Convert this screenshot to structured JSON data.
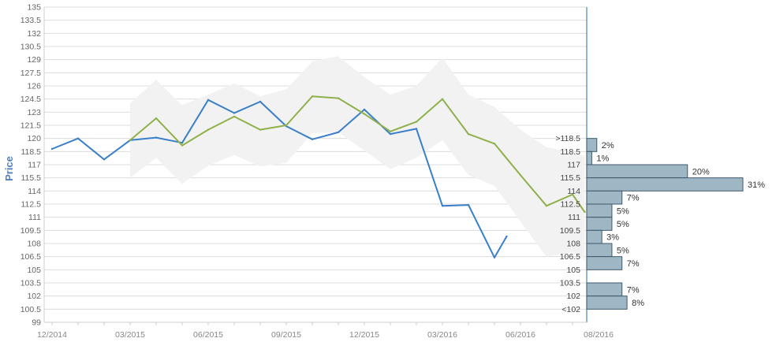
{
  "chart_data": {
    "type": "line",
    "ylabel": "Price",
    "ylim": [
      99,
      135
    ],
    "yticks": [
      135,
      133.5,
      132,
      130.5,
      129,
      127.5,
      126,
      124.5,
      123,
      121.5,
      120,
      118.5,
      117,
      115.5,
      114,
      112.5,
      111,
      109.5,
      108,
      106.5,
      105,
      103.5,
      102,
      100.5,
      99
    ],
    "xticks": [
      "12/2014",
      "03/2015",
      "06/2015",
      "09/2015",
      "12/2015",
      "03/2016",
      "06/2016",
      "08/2016"
    ],
    "grid": true,
    "colors": {
      "price": "#3a7fc8",
      "forecast": "#8fb04b",
      "band": "#f2f2f2",
      "bar_fill": "#9fb6c4",
      "bar_stroke": "#3d5a6c",
      "axis": "#4f81bd"
    },
    "series": [
      {
        "key": "price",
        "x": [
          "2014-12",
          "2015-01",
          "2015-02",
          "2015-03",
          "2015-04",
          "2015-05",
          "2015-06",
          "2015-07",
          "2015-08",
          "2015-09",
          "2015-10",
          "2015-11",
          "2015-12",
          "2016-01",
          "2016-02",
          "2016-03",
          "2016-04",
          "2016-05",
          "2016-05-15"
        ],
        "y": [
          118.8,
          120.0,
          117.6,
          119.8,
          120.1,
          119.5,
          124.4,
          122.9,
          124.2,
          121.4,
          119.9,
          120.7,
          123.3,
          120.5,
          121.1,
          112.3,
          112.4,
          106.4,
          108.8
        ]
      },
      {
        "key": "forecast",
        "x": [
          "2015-03",
          "2015-04",
          "2015-05",
          "2015-06",
          "2015-07",
          "2015-08",
          "2015-09",
          "2015-10",
          "2015-11",
          "2015-12",
          "2016-01",
          "2016-02",
          "2016-03",
          "2016-04",
          "2016-05",
          "2016-06",
          "2016-07",
          "2016-08",
          "2016-08-15"
        ],
        "y": [
          119.8,
          122.3,
          119.2,
          121.0,
          122.5,
          121.0,
          121.5,
          124.8,
          124.6,
          122.8,
          120.8,
          121.9,
          124.5,
          120.5,
          119.4,
          115.8,
          112.3,
          113.6,
          111.6
        ]
      }
    ],
    "band": {
      "x": [
        "2015-03",
        "2015-04",
        "2015-05",
        "2015-06",
        "2015-07",
        "2015-08",
        "2015-09",
        "2015-10",
        "2015-11",
        "2015-12",
        "2016-01",
        "2016-02",
        "2016-03",
        "2016-04",
        "2016-05",
        "2016-06",
        "2016-07",
        "2016-08",
        "2016-08-15"
      ],
      "upper": [
        124.0,
        126.7,
        123.8,
        125.0,
        126.3,
        124.8,
        125.6,
        128.8,
        129.4,
        127.0,
        125.0,
        126.0,
        129.2,
        125.0,
        123.6,
        121.0,
        119.0,
        118.4,
        118.0
      ],
      "lower": [
        115.5,
        117.8,
        114.8,
        116.9,
        118.1,
        116.8,
        117.2,
        120.6,
        120.7,
        118.6,
        116.5,
        117.8,
        119.8,
        115.8,
        114.6,
        110.5,
        106.5,
        107.0,
        106.0
      ]
    },
    "distribution": {
      "labels": [
        ">118.5",
        "118.5",
        "117",
        "115.5",
        "114",
        "112.5",
        "111",
        "109.5",
        "108",
        "106.5",
        "105",
        "103.5",
        "102",
        "<102"
      ],
      "bins": [
        {
          "lo": 118.5,
          "hi": 120.0,
          "percent": 2,
          "label": "2%"
        },
        {
          "lo": 117.0,
          "hi": 118.5,
          "percent": 1,
          "label": "1%"
        },
        {
          "lo": 115.5,
          "hi": 117.0,
          "percent": 20,
          "label": "20%"
        },
        {
          "lo": 114.0,
          "hi": 115.5,
          "percent": 31,
          "label": "31%"
        },
        {
          "lo": 112.5,
          "hi": 114.0,
          "percent": 7,
          "label": "7%"
        },
        {
          "lo": 111.0,
          "hi": 112.5,
          "percent": 5,
          "label": "5%"
        },
        {
          "lo": 109.5,
          "hi": 111.0,
          "percent": 5,
          "label": "5%"
        },
        {
          "lo": 108.0,
          "hi": 109.5,
          "percent": 3,
          "label": "3%"
        },
        {
          "lo": 106.5,
          "hi": 108.0,
          "percent": 5,
          "label": "5%"
        },
        {
          "lo": 105.0,
          "hi": 106.5,
          "percent": 7,
          "label": "7%"
        },
        {
          "lo": 102.0,
          "hi": 103.5,
          "percent": 7,
          "label": "7%"
        },
        {
          "lo": 100.5,
          "hi": 102.0,
          "percent": 8,
          "label": "8%"
        }
      ]
    }
  }
}
